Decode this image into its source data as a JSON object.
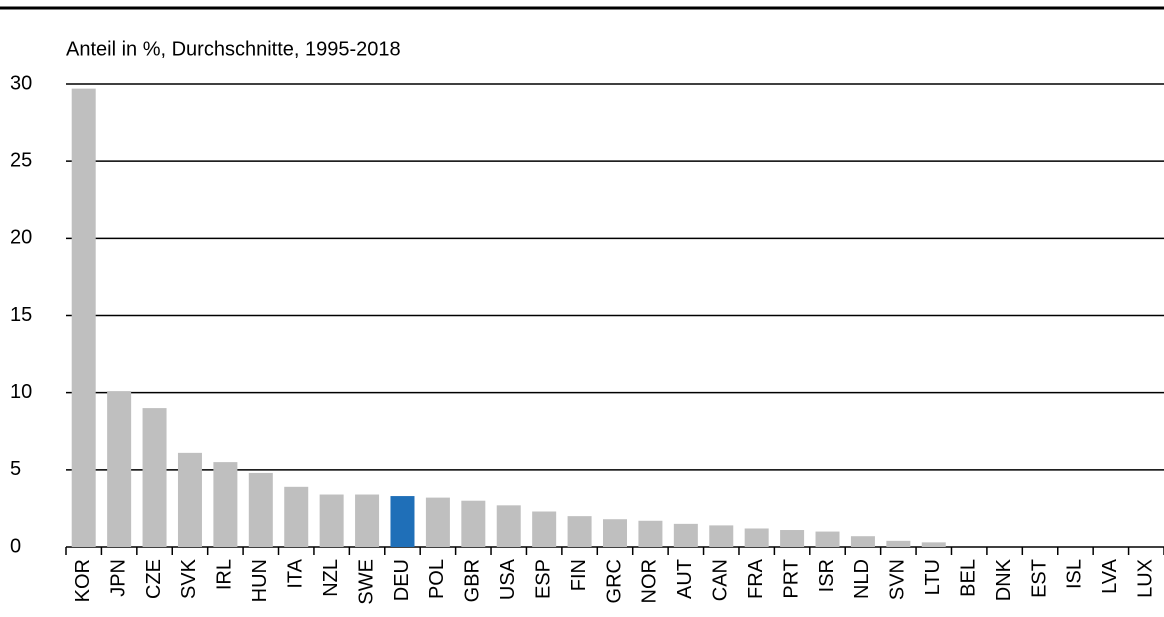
{
  "chart_data": {
    "type": "bar",
    "subtitle": "Anteil in %, Durchschnitte, 1995-2018",
    "categories": [
      "KOR",
      "JPN",
      "CZE",
      "SVK",
      "IRL",
      "HUN",
      "ITA",
      "NZL",
      "SWE",
      "DEU",
      "POL",
      "GBR",
      "USA",
      "ESP",
      "FIN",
      "GRC",
      "NOR",
      "AUT",
      "CAN",
      "FRA",
      "PRT",
      "ISR",
      "NLD",
      "SVN",
      "LTU",
      "BEL",
      "DNK",
      "EST",
      "ISL",
      "LVA",
      "LUX"
    ],
    "values": [
      29.7,
      10.1,
      9.0,
      6.1,
      5.5,
      4.8,
      3.9,
      3.4,
      3.4,
      3.3,
      3.2,
      3.0,
      2.7,
      2.3,
      2.0,
      1.8,
      1.7,
      1.5,
      1.4,
      1.2,
      1.1,
      1.0,
      0.7,
      0.4,
      0.3,
      0,
      0,
      0,
      0,
      0,
      0
    ],
    "colors": [
      "#bfbfbf",
      "#bfbfbf",
      "#bfbfbf",
      "#bfbfbf",
      "#bfbfbf",
      "#bfbfbf",
      "#bfbfbf",
      "#bfbfbf",
      "#bfbfbf",
      "#1f6fb8",
      "#bfbfbf",
      "#bfbfbf",
      "#bfbfbf",
      "#bfbfbf",
      "#bfbfbf",
      "#bfbfbf",
      "#bfbfbf",
      "#bfbfbf",
      "#bfbfbf",
      "#bfbfbf",
      "#bfbfbf",
      "#bfbfbf",
      "#bfbfbf",
      "#bfbfbf",
      "#bfbfbf",
      "#bfbfbf",
      "#bfbfbf",
      "#bfbfbf",
      "#bfbfbf",
      "#bfbfbf",
      "#bfbfbf"
    ],
    "ylim": [
      0,
      30
    ],
    "yticks": [
      0,
      5,
      10,
      15,
      20,
      25,
      30
    ],
    "grid": true
  }
}
